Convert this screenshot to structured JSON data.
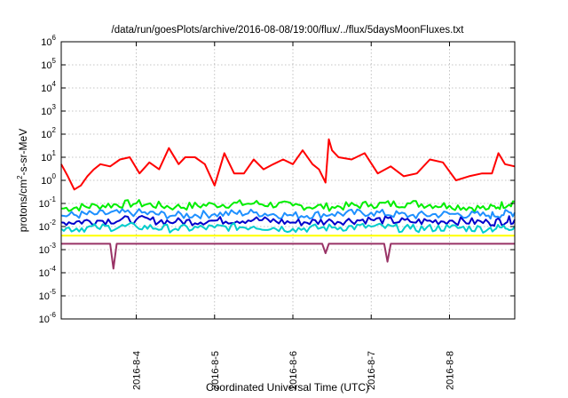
{
  "chart_data": {
    "type": "line",
    "title": "/data/run/goesPlots/archive/2016-08-08/19:00/flux/../flux/5daysMoonFluxes.txt",
    "xlabel": "Coordinated Universal Time (UTC)",
    "ylabel": {
      "base": "protons/cm",
      "sup": "2",
      "rest": "-s-sr-MeV"
    },
    "yscale": "log",
    "ylim": [
      1e-06,
      1000000.0
    ],
    "xlim": [
      "2016-08-03 01:00",
      "2016-08-08 20:00"
    ],
    "grid": true,
    "y_ticks": [
      {
        "value": 1e-06,
        "base": "10",
        "exp": "-6"
      },
      {
        "value": 1e-05,
        "base": "10",
        "exp": "-5"
      },
      {
        "value": 0.0001,
        "base": "10",
        "exp": "-4"
      },
      {
        "value": 0.001,
        "base": "10",
        "exp": "-3"
      },
      {
        "value": 0.01,
        "base": "10",
        "exp": "-2"
      },
      {
        "value": 0.1,
        "base": "10",
        "exp": "-1"
      },
      {
        "value": 1,
        "base": "10",
        "exp": "0"
      },
      {
        "value": 10,
        "base": "10",
        "exp": "1"
      },
      {
        "value": 100,
        "base": "10",
        "exp": "2"
      },
      {
        "value": 1000,
        "base": "10",
        "exp": "3"
      },
      {
        "value": 10000,
        "base": "10",
        "exp": "4"
      },
      {
        "value": 100000,
        "base": "10",
        "exp": "5"
      },
      {
        "value": 1000000,
        "base": "10",
        "exp": "6"
      }
    ],
    "x_ticks": [
      "2016-8-4",
      "2016-8-5",
      "2016-8-6",
      "2016-8-7",
      "2016-8-8"
    ],
    "series": [
      {
        "color": "#ff0000",
        "x": [
          "08-03 01:00",
          "08-03 03:00",
          "08-03 05:00",
          "08-03 07:00",
          "08-03 09:00",
          "08-03 11:00",
          "08-03 13:00",
          "08-03 16:00",
          "08-03 19:00",
          "08-03 22:00",
          "08-04 01:00",
          "08-04 04:00",
          "08-04 07:00",
          "08-04 10:00",
          "08-04 13:00",
          "08-04 15:00",
          "08-04 18:00",
          "08-04 21:00",
          "08-05 00:00",
          "08-05 03:00",
          "08-05 06:00",
          "08-05 09:00",
          "08-05 12:00",
          "08-05 15:00",
          "08-05 18:00",
          "08-05 21:00",
          "08-06 00:00",
          "08-06 03:00",
          "08-06 06:00",
          "08-06 08:00",
          "08-06 10:00",
          "08-06 11:00",
          "08-06 12:00",
          "08-06 14:00",
          "08-06 18:00",
          "08-06 22:00",
          "08-07 02:00",
          "08-07 06:00",
          "08-07 10:00",
          "08-07 14:00",
          "08-07 18:00",
          "08-07 22:00",
          "08-08 02:00",
          "08-08 06:00",
          "08-08 10:00",
          "08-08 13:00",
          "08-08 15:00",
          "08-08 17:00",
          "08-08 20:00"
        ],
        "values": [
          5,
          1.5,
          0.4,
          0.6,
          1.5,
          3,
          5,
          4,
          8,
          10,
          2,
          6,
          3,
          25,
          5,
          10,
          10,
          5,
          0.6,
          15,
          2,
          2,
          8,
          3,
          5,
          8,
          5,
          20,
          5,
          3,
          0.8,
          60,
          20,
          10,
          8,
          15,
          2,
          4,
          1.5,
          2,
          8,
          6,
          1,
          1.5,
          2,
          2,
          15,
          5,
          4
        ]
      },
      {
        "color": "#00ee00",
        "x": [
          "08-03 01:00",
          "08-03 12:00",
          "08-04 00:00",
          "08-04 12:00",
          "08-05 00:00",
          "08-05 12:00",
          "08-06 00:00",
          "08-06 12:00",
          "08-07 00:00",
          "08-07 12:00",
          "08-08 00:00",
          "08-08 12:00",
          "08-08 20:00"
        ],
        "values": [
          0.06,
          0.08,
          0.1,
          0.07,
          0.09,
          0.1,
          0.08,
          0.07,
          0.09,
          0.1,
          0.08,
          0.06,
          0.12
        ]
      },
      {
        "color": "#1e90ff",
        "x": [
          "08-03 01:00",
          "08-03 12:00",
          "08-04 00:00",
          "08-04 12:00",
          "08-05 00:00",
          "08-05 12:00",
          "08-06 00:00",
          "08-06 12:00",
          "08-07 00:00",
          "08-07 12:00",
          "08-08 00:00",
          "08-08 12:00",
          "08-08 20:00"
        ],
        "values": [
          0.03,
          0.035,
          0.04,
          0.03,
          0.035,
          0.04,
          0.03,
          0.035,
          0.04,
          0.03,
          0.035,
          0.03,
          0.04
        ]
      },
      {
        "color": "#0000cc",
        "x": [
          "08-03 01:00",
          "08-03 12:00",
          "08-04 00:00",
          "08-04 12:00",
          "08-05 00:00",
          "08-05 12:00",
          "08-06 00:00",
          "08-06 12:00",
          "08-07 00:00",
          "08-07 12:00",
          "08-08 00:00",
          "08-08 12:00",
          "08-08 20:00"
        ],
        "values": [
          0.015,
          0.018,
          0.02,
          0.016,
          0.018,
          0.02,
          0.015,
          0.017,
          0.02,
          0.016,
          0.018,
          0.015,
          0.02
        ]
      },
      {
        "color": "#00cccc",
        "x": [
          "08-03 01:00",
          "08-03 12:00",
          "08-04 00:00",
          "08-04 12:00",
          "08-05 00:00",
          "08-05 12:00",
          "08-06 00:00",
          "08-06 12:00",
          "08-07 00:00",
          "08-07 12:00",
          "08-08 00:00",
          "08-08 12:00",
          "08-08 20:00"
        ],
        "values": [
          0.008,
          0.009,
          0.01,
          0.008,
          0.009,
          0.01,
          0.008,
          0.009,
          0.01,
          0.008,
          0.009,
          0.008,
          0.01
        ]
      },
      {
        "color": "#ffff00",
        "x": [
          "08-03 01:00",
          "08-08 20:00"
        ],
        "values": [
          0.004,
          0.004
        ]
      },
      {
        "color": "#993366",
        "x": [
          "08-03 01:00",
          "08-03 12:00",
          "08-03 16:00",
          "08-03 17:00",
          "08-03 18:00",
          "08-04 12:00",
          "08-05 12:00",
          "08-06 09:00",
          "08-06 10:00",
          "08-06 11:00",
          "08-07 04:00",
          "08-07 05:00",
          "08-07 06:00",
          "08-08 00:00",
          "08-08 20:00"
        ],
        "values": [
          0.0018,
          0.0018,
          0.0018,
          0.00015,
          0.0018,
          0.0018,
          0.0018,
          0.0018,
          0.0007,
          0.0018,
          0.0018,
          0.0003,
          0.0018,
          0.0018,
          0.0018
        ]
      }
    ]
  }
}
